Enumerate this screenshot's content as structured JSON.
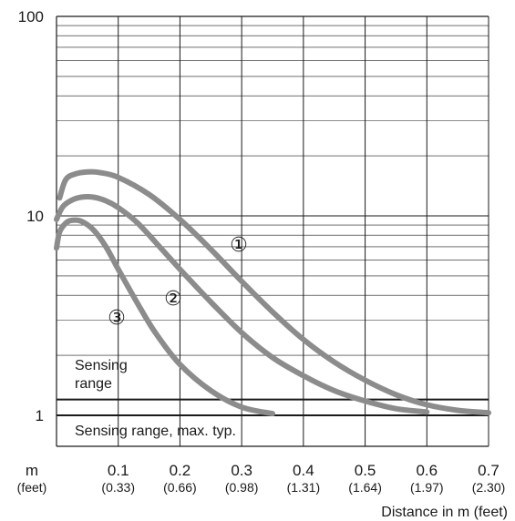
{
  "chart_data": {
    "type": "line",
    "x_scale": "linear",
    "y_scale": "log",
    "xlim": [
      0,
      0.7
    ],
    "ylim": [
      1,
      100
    ],
    "grid": true,
    "xlabel": "Distance in m (feet)",
    "ylabel": "",
    "x_unit_label": "m",
    "x_unit_sub": "(feet)",
    "x_ticks": [
      {
        "value": 0.1,
        "label": "0.1",
        "sub": "(0.33)"
      },
      {
        "value": 0.2,
        "label": "0.2",
        "sub": "(0.66)"
      },
      {
        "value": 0.3,
        "label": "0.3",
        "sub": "(0.98)"
      },
      {
        "value": 0.4,
        "label": "0.4",
        "sub": "(1.31)"
      },
      {
        "value": 0.5,
        "label": "0.5",
        "sub": "(1.64)"
      },
      {
        "value": 0.6,
        "label": "0.6",
        "sub": "(1.97)"
      },
      {
        "value": 0.7,
        "label": "0.7",
        "sub": "(2.30)"
      }
    ],
    "y_ticks": [
      {
        "value": 1,
        "label": "1"
      },
      {
        "value": 10,
        "label": "10"
      },
      {
        "value": 100,
        "label": "100"
      }
    ],
    "series": [
      {
        "name": "①",
        "x": [
          0.005,
          0.015,
          0.03,
          0.05,
          0.07,
          0.1,
          0.15,
          0.2,
          0.25,
          0.3,
          0.35,
          0.4,
          0.45,
          0.5,
          0.55,
          0.6,
          0.65,
          0.7
        ],
        "y": [
          12.3,
          15.2,
          16.2,
          16.6,
          16.5,
          15.6,
          12.8,
          9.6,
          6.8,
          4.7,
          3.3,
          2.4,
          1.85,
          1.5,
          1.27,
          1.13,
          1.06,
          1.03
        ]
      },
      {
        "name": "②",
        "x": [
          0.0,
          0.01,
          0.025,
          0.04,
          0.06,
          0.08,
          0.1,
          0.13,
          0.16,
          0.2,
          0.25,
          0.3,
          0.35,
          0.4,
          0.45,
          0.5,
          0.55,
          0.6
        ],
        "y": [
          9.6,
          11.1,
          12.0,
          12.4,
          12.4,
          11.9,
          11.0,
          9.3,
          7.4,
          5.4,
          3.7,
          2.6,
          1.95,
          1.58,
          1.33,
          1.18,
          1.08,
          1.04
        ]
      },
      {
        "name": "③",
        "x": [
          0.0,
          0.005,
          0.015,
          0.025,
          0.04,
          0.06,
          0.08,
          0.1,
          0.13,
          0.16,
          0.2,
          0.25,
          0.3,
          0.35
        ],
        "y": [
          6.9,
          8.3,
          9.2,
          9.5,
          9.4,
          8.5,
          7.0,
          5.4,
          3.7,
          2.6,
          1.8,
          1.33,
          1.1,
          1.02
        ]
      }
    ],
    "reference_lines": [
      {
        "y": 1.2,
        "label": "Sensing\nrange"
      },
      {
        "y": 1.0,
        "label": "Sensing range, max. typ."
      }
    ]
  },
  "annotations": {
    "sensing_range_line1": "Sensing",
    "sensing_range_line2": "range",
    "sensing_range_max": "Sensing range, max. typ."
  },
  "colors": {
    "curve": "#8c8c8c",
    "grid": "#1a1a1a",
    "reference": "#1a1a1a"
  }
}
